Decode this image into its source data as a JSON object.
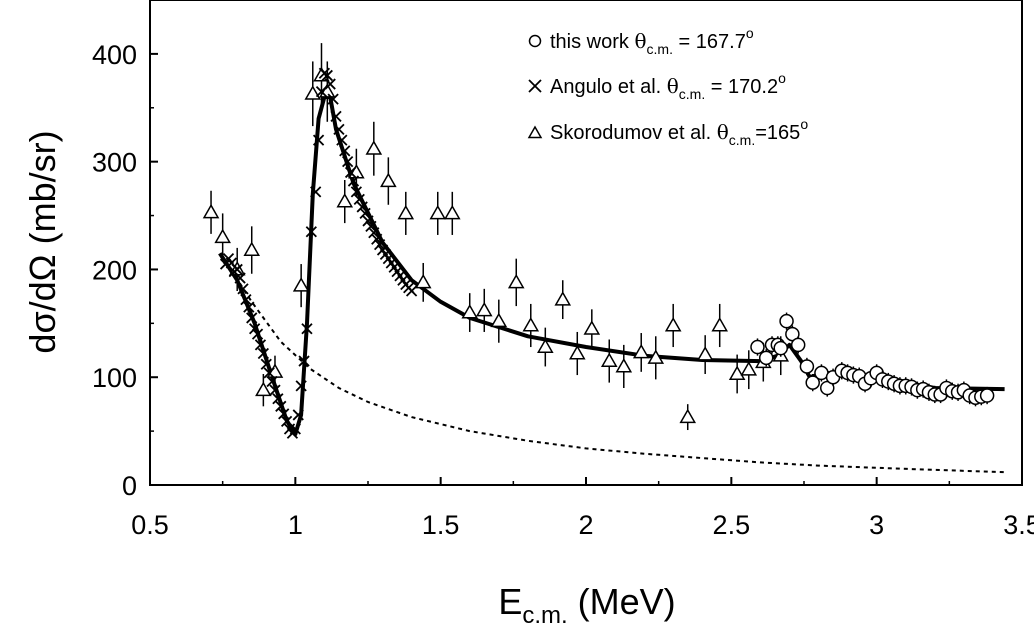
{
  "chart_data": {
    "type": "scatter",
    "xlabel": {
      "main": "E",
      "sub": "c.m.",
      "rest": " (MeV)"
    },
    "ylabel": "dσ/dΩ (mb/sr)",
    "xlim": [
      0.5,
      3.5
    ],
    "ylim": [
      0,
      450
    ],
    "x_ticks": [
      "0.5",
      "1",
      "1.5",
      "2",
      "2.5",
      "3",
      "3.5"
    ],
    "y_ticks": [
      "0",
      "100",
      "200",
      "300",
      "400"
    ],
    "grid": false,
    "legend_position": "top-right",
    "legend": [
      {
        "marker": "circle",
        "name": "this work ",
        "theta": "θ",
        "sub": "c.m.",
        "value": " = 167.7",
        "sup": "o"
      },
      {
        "marker": "cross",
        "name": "Angulo et al. ",
        "theta": "θ",
        "sub": "c.m.",
        "value": " = 170.2",
        "sup": "o"
      },
      {
        "marker": "triangle",
        "name": "Skorodumov et al. ",
        "theta": "θ",
        "sub": "c.m.",
        "value": "=165",
        "sup": "o"
      }
    ],
    "series": [
      {
        "name": "this work θc.m. = 167.7°",
        "marker": "circle",
        "points": [
          [
            2.59,
            128,
            8
          ],
          [
            2.62,
            118,
            8
          ],
          [
            2.64,
            130,
            8
          ],
          [
            2.66,
            130,
            8
          ],
          [
            2.67,
            127,
            8
          ],
          [
            2.69,
            152,
            8
          ],
          [
            2.71,
            140,
            8
          ],
          [
            2.73,
            130,
            8
          ],
          [
            2.76,
            110,
            8
          ],
          [
            2.78,
            95,
            8
          ],
          [
            2.81,
            104,
            8
          ],
          [
            2.83,
            90,
            8
          ],
          [
            2.85,
            100,
            8
          ],
          [
            2.88,
            106,
            8
          ],
          [
            2.9,
            104,
            8
          ],
          [
            2.92,
            102,
            8
          ],
          [
            2.94,
            101,
            8
          ],
          [
            2.96,
            94,
            8
          ],
          [
            2.98,
            99,
            8
          ],
          [
            3.0,
            104,
            8
          ],
          [
            3.02,
            98,
            8
          ],
          [
            3.04,
            96,
            8
          ],
          [
            3.06,
            94,
            8
          ],
          [
            3.08,
            92,
            8
          ],
          [
            3.1,
            92,
            8
          ],
          [
            3.12,
            91,
            8
          ],
          [
            3.14,
            88,
            8
          ],
          [
            3.16,
            89,
            8
          ],
          [
            3.18,
            86,
            8
          ],
          [
            3.2,
            84,
            8
          ],
          [
            3.22,
            84,
            8
          ],
          [
            3.24,
            90,
            8
          ],
          [
            3.26,
            87,
            8
          ],
          [
            3.28,
            86,
            8
          ],
          [
            3.3,
            88,
            8
          ],
          [
            3.32,
            83,
            8
          ],
          [
            3.34,
            81,
            8
          ],
          [
            3.36,
            82,
            8
          ],
          [
            3.38,
            83,
            8
          ]
        ]
      },
      {
        "name": "Angulo et al. θc.m. = 170.2°",
        "marker": "cross",
        "points": [
          [
            0.76,
            205
          ],
          [
            0.77,
            210
          ],
          [
            0.78,
            206
          ],
          [
            0.79,
            198
          ],
          [
            0.8,
            200
          ],
          [
            0.81,
            192
          ],
          [
            0.82,
            182
          ],
          [
            0.83,
            172
          ],
          [
            0.84,
            165
          ],
          [
            0.85,
            155
          ],
          [
            0.86,
            145
          ],
          [
            0.87,
            140
          ],
          [
            0.88,
            130
          ],
          [
            0.89,
            122
          ],
          [
            0.9,
            112
          ],
          [
            0.91,
            104
          ],
          [
            0.92,
            96
          ],
          [
            0.93,
            88
          ],
          [
            0.94,
            80
          ],
          [
            0.95,
            73
          ],
          [
            0.96,
            66
          ],
          [
            0.97,
            59
          ],
          [
            0.98,
            52
          ],
          [
            0.99,
            48
          ],
          [
            1.0,
            52
          ],
          [
            1.01,
            65
          ],
          [
            1.02,
            92
          ],
          [
            1.03,
            115
          ],
          [
            1.04,
            145
          ],
          [
            1.055,
            235
          ],
          [
            1.07,
            272
          ],
          [
            1.08,
            320
          ],
          [
            1.09,
            365
          ],
          [
            1.1,
            382
          ],
          [
            1.11,
            380
          ],
          [
            1.12,
            372
          ],
          [
            1.13,
            358
          ],
          [
            1.14,
            342
          ],
          [
            1.15,
            330
          ],
          [
            1.16,
            320
          ],
          [
            1.17,
            310
          ],
          [
            1.18,
            300
          ],
          [
            1.19,
            290
          ],
          [
            1.2,
            282
          ],
          [
            1.21,
            272
          ],
          [
            1.22,
            265
          ],
          [
            1.23,
            258
          ],
          [
            1.24,
            252
          ],
          [
            1.25,
            245
          ],
          [
            1.26,
            240
          ],
          [
            1.27,
            234
          ],
          [
            1.28,
            228
          ],
          [
            1.29,
            223
          ],
          [
            1.3,
            218
          ],
          [
            1.31,
            214
          ],
          [
            1.32,
            210
          ],
          [
            1.33,
            206
          ],
          [
            1.34,
            202
          ],
          [
            1.35,
            198
          ],
          [
            1.36,
            194
          ],
          [
            1.37,
            190
          ],
          [
            1.38,
            186
          ],
          [
            1.39,
            183
          ],
          [
            1.4,
            180
          ]
        ]
      },
      {
        "name": "Skorodumov et al. θc.m.=165°",
        "marker": "triangle",
        "points": [
          [
            0.71,
            253,
            20
          ],
          [
            0.75,
            230,
            22
          ],
          [
            0.8,
            200,
            20
          ],
          [
            0.85,
            218,
            22
          ],
          [
            0.89,
            88,
            15
          ],
          [
            0.93,
            105,
            15
          ],
          [
            1.02,
            185,
            20
          ],
          [
            1.06,
            363,
            30
          ],
          [
            1.09,
            380,
            30
          ],
          [
            1.11,
            365,
            28
          ],
          [
            1.17,
            263,
            20
          ],
          [
            1.21,
            290,
            22
          ],
          [
            1.27,
            312,
            25
          ],
          [
            1.32,
            282,
            22
          ],
          [
            1.38,
            252,
            20
          ],
          [
            1.44,
            188,
            18
          ],
          [
            1.49,
            252,
            20
          ],
          [
            1.54,
            252,
            20
          ],
          [
            1.6,
            160,
            18
          ],
          [
            1.65,
            162,
            20
          ],
          [
            1.7,
            152,
            20
          ],
          [
            1.76,
            188,
            22
          ],
          [
            1.81,
            148,
            20
          ],
          [
            1.86,
            128,
            18
          ],
          [
            1.92,
            172,
            18
          ],
          [
            1.97,
            122,
            20
          ],
          [
            2.02,
            145,
            18
          ],
          [
            2.08,
            115,
            20
          ],
          [
            2.13,
            110,
            20
          ],
          [
            2.19,
            123,
            18
          ],
          [
            2.24,
            118,
            20
          ],
          [
            2.3,
            148,
            20
          ],
          [
            2.35,
            63,
            12
          ],
          [
            2.41,
            121,
            18
          ],
          [
            2.46,
            148,
            20
          ],
          [
            2.52,
            103,
            18
          ],
          [
            2.56,
            107,
            18
          ],
          [
            2.61,
            114,
            18
          ],
          [
            2.67,
            120,
            18
          ]
        ]
      }
    ],
    "curves": [
      {
        "style": "solid",
        "points": [
          [
            0.74,
            215
          ],
          [
            0.8,
            190
          ],
          [
            0.86,
            150
          ],
          [
            0.92,
            100
          ],
          [
            0.97,
            60
          ],
          [
            1.0,
            47
          ],
          [
            1.02,
            65
          ],
          [
            1.04,
            150
          ],
          [
            1.06,
            270
          ],
          [
            1.08,
            340
          ],
          [
            1.1,
            360
          ],
          [
            1.12,
            360
          ],
          [
            1.14,
            330
          ],
          [
            1.2,
            280
          ],
          [
            1.3,
            225
          ],
          [
            1.4,
            190
          ],
          [
            1.5,
            170
          ],
          [
            1.6,
            155
          ],
          [
            1.8,
            138
          ],
          [
            2.0,
            128
          ],
          [
            2.2,
            120
          ],
          [
            2.4,
            116
          ],
          [
            2.6,
            115
          ],
          [
            2.66,
            120
          ],
          [
            2.7,
            130
          ],
          [
            2.74,
            115
          ],
          [
            2.77,
            100
          ],
          [
            2.82,
            104
          ],
          [
            2.9,
            103
          ],
          [
            3.0,
            100
          ],
          [
            3.2,
            90
          ],
          [
            3.44,
            89
          ]
        ]
      },
      {
        "style": "dotted",
        "points": [
          [
            0.75,
            212
          ],
          [
            0.85,
            170
          ],
          [
            0.95,
            133
          ],
          [
            1.05,
            108
          ],
          [
            1.15,
            90
          ],
          [
            1.25,
            77
          ],
          [
            1.4,
            63
          ],
          [
            1.6,
            50
          ],
          [
            1.8,
            41
          ],
          [
            2.0,
            34
          ],
          [
            2.2,
            29
          ],
          [
            2.4,
            25
          ],
          [
            2.6,
            21
          ],
          [
            2.8,
            18
          ],
          [
            3.0,
            16
          ],
          [
            3.2,
            14
          ],
          [
            3.44,
            12
          ]
        ]
      }
    ]
  }
}
